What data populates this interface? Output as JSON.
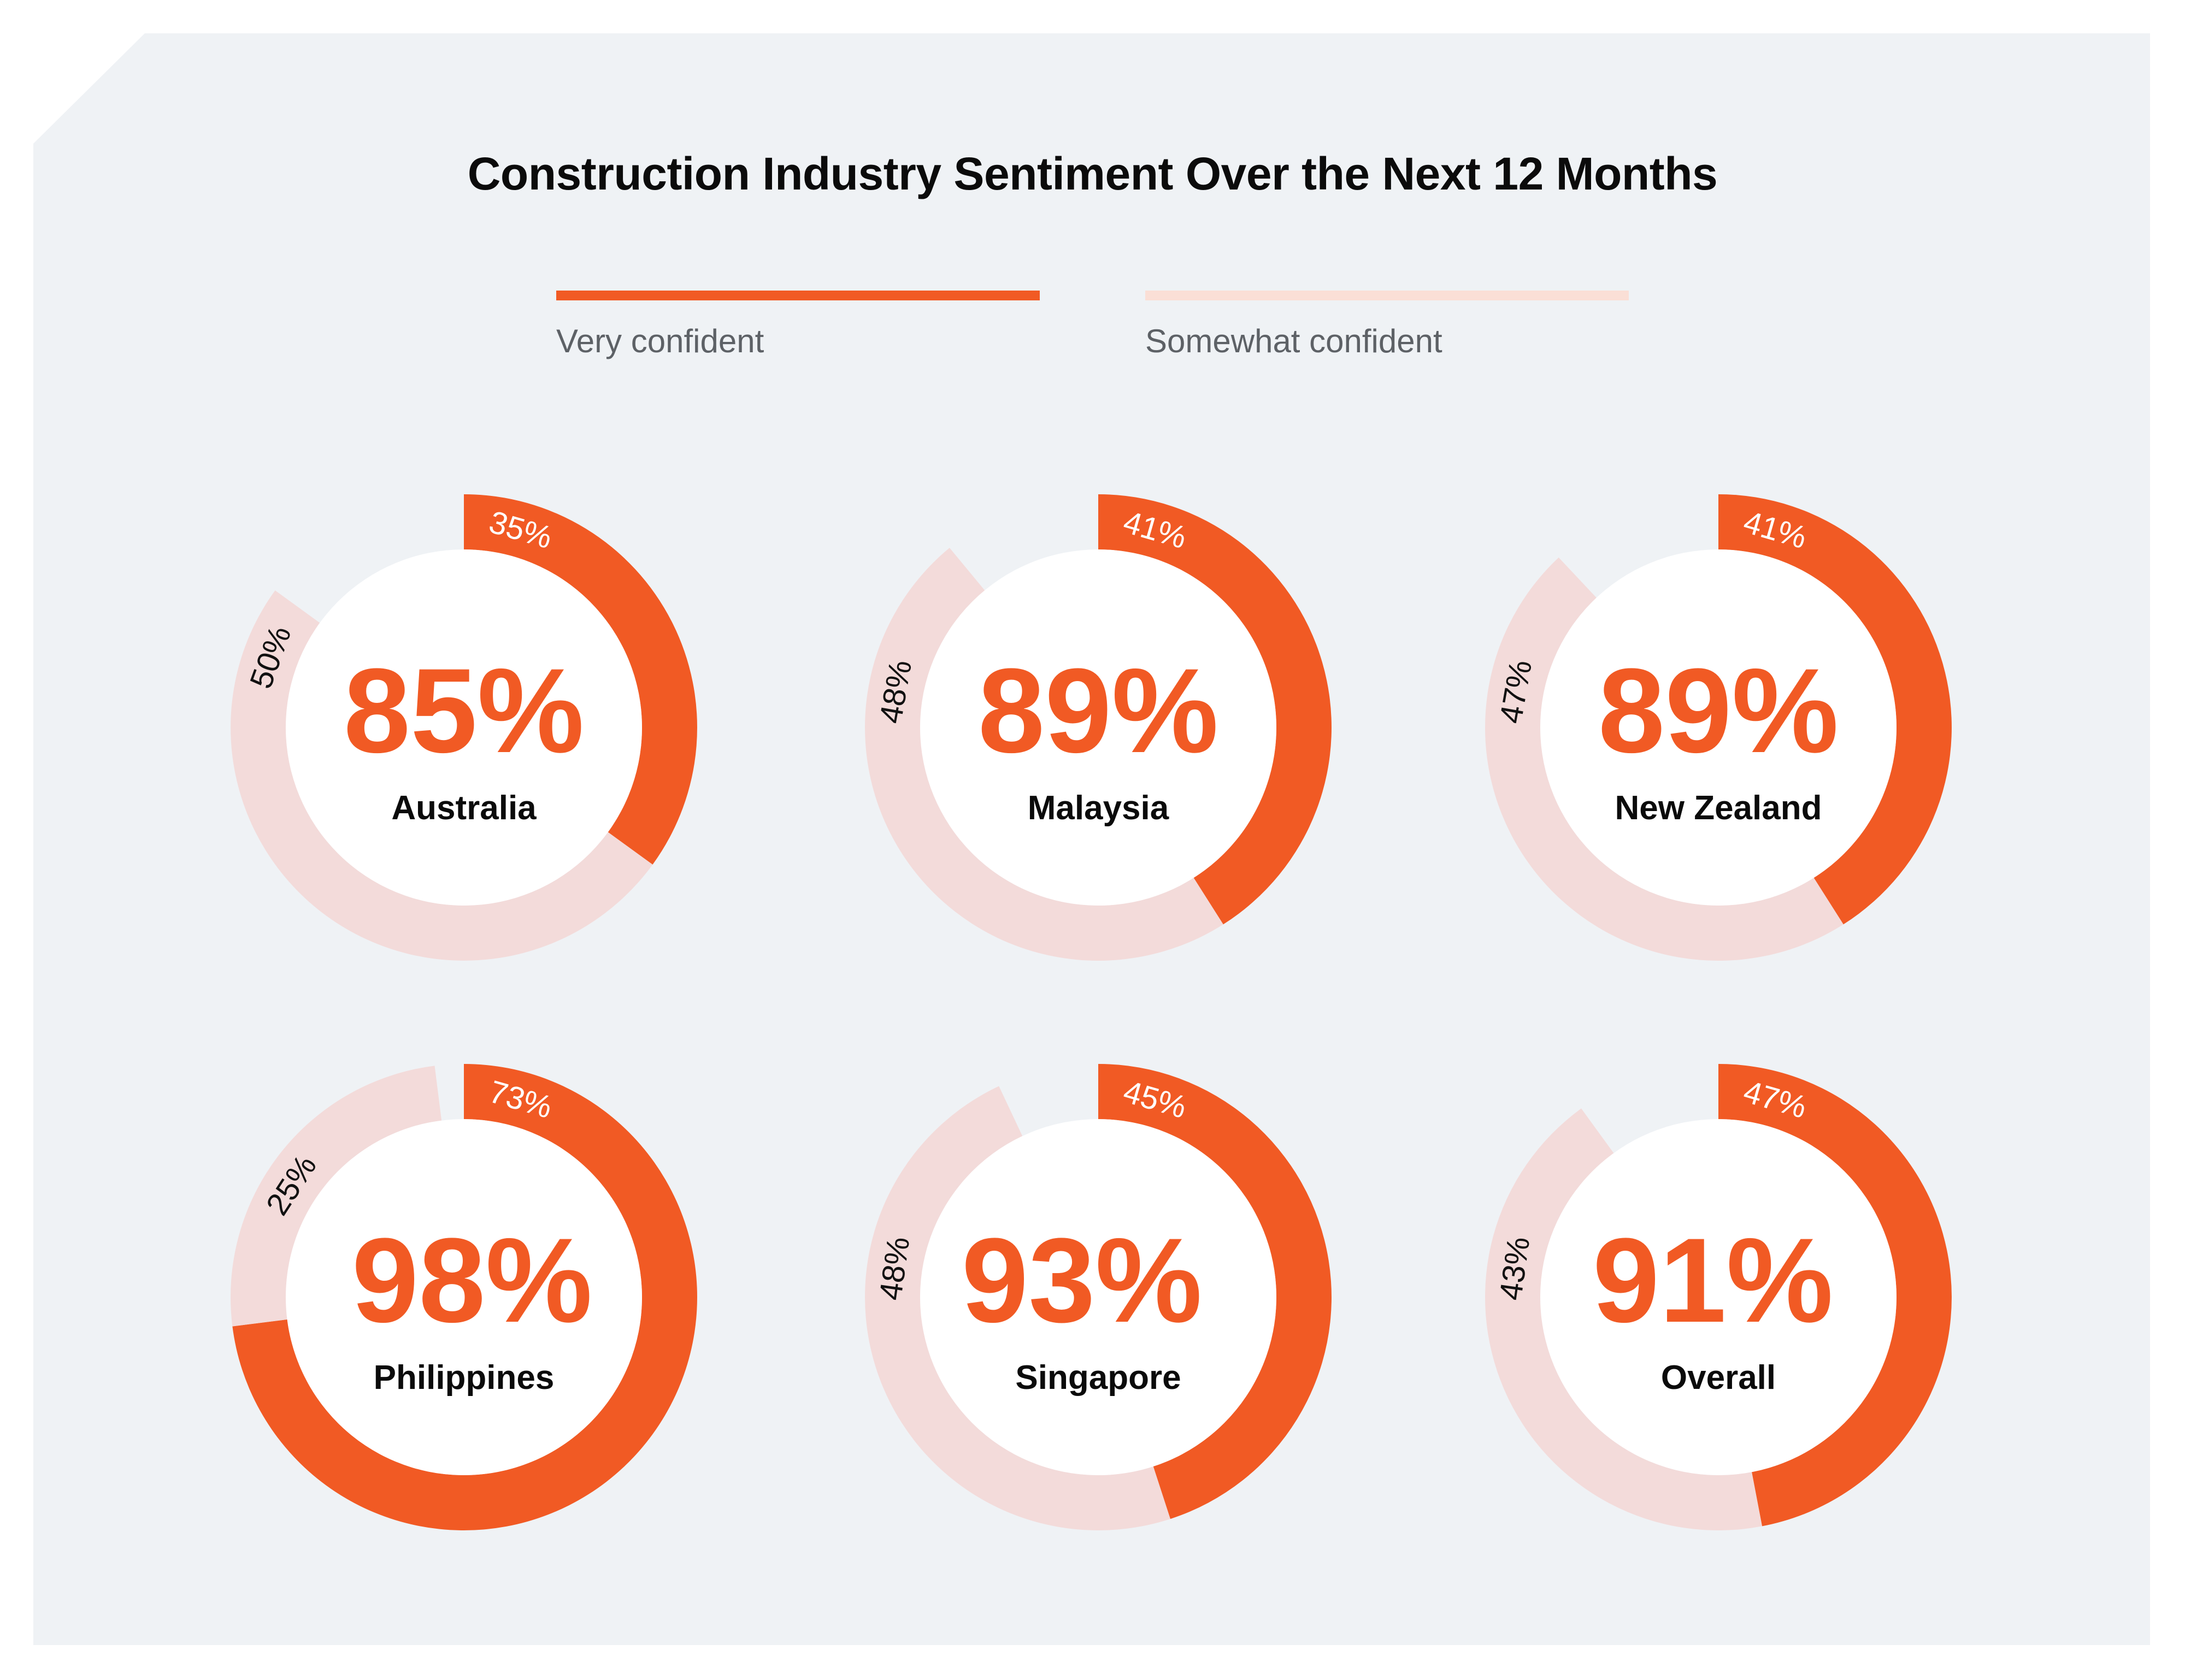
{
  "colors": {
    "background": "#EFF2F5",
    "very_confident": "#F15A24",
    "somewhat_confident": "#F3DBDA",
    "legend_somewhat": "#FADFD6",
    "center": "#FFFFFF"
  },
  "chart_data": {
    "type": "donut",
    "title": "Construction Industry Sentiment Over the Next 12 Months",
    "legend": {
      "placement": "top",
      "items": [
        "Very confident",
        "Somewhat confident"
      ]
    },
    "categories": [
      "Australia",
      "Malaysia",
      "New Zealand",
      "Philippines",
      "Singapore",
      "Overall"
    ],
    "series": [
      {
        "name": "Very confident",
        "values": [
          35,
          41,
          41,
          73,
          45,
          47
        ],
        "labels": [
          "35%",
          "41%",
          "41%",
          "73%",
          "45%",
          "47%"
        ]
      },
      {
        "name": "Somewhat confident",
        "values": [
          50,
          48,
          47,
          25,
          48,
          43
        ],
        "labels": [
          "50%",
          "48%",
          "47%",
          "25%",
          "48%",
          "43%"
        ]
      }
    ],
    "totals": [
      "85%",
      "89%",
      "89%",
      "98%",
      "93%",
      "91%"
    ],
    "unit": "%"
  }
}
